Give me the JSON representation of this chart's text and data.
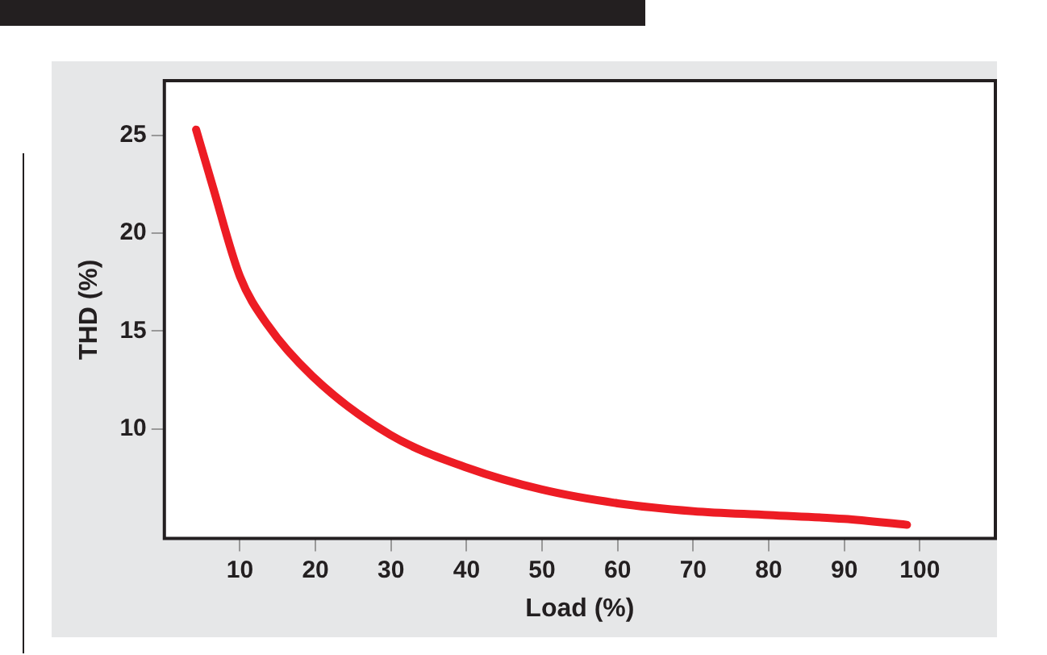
{
  "chart_data": {
    "type": "line",
    "xlabel": "Load (%)",
    "ylabel": "THD (%)",
    "x": [
      4.2,
      6.4,
      10,
      13.7,
      19.6,
      29.9,
      40.2,
      50,
      60,
      70,
      80,
      90,
      98.3
    ],
    "series": [
      {
        "color": "#ed1c24",
        "values": [
          25.3,
          22.4,
          17.8,
          15.3,
          12.7,
          9.7,
          8.0,
          6.9,
          6.2,
          5.8,
          5.6,
          5.4,
          5.1
        ]
      }
    ],
    "xlim": [
      0,
      110
    ],
    "ylim": [
      4.4,
      27.8
    ],
    "xticks": [
      10,
      20,
      30,
      40,
      50,
      60,
      70,
      80,
      90,
      100
    ],
    "yticks": [
      10,
      15,
      20,
      25
    ],
    "grid": false,
    "legend": false,
    "marker": "none",
    "line_style": "solid"
  }
}
